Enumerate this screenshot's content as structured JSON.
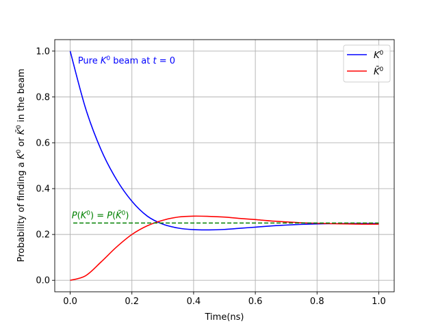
{
  "chart_data": {
    "type": "line",
    "title": "",
    "xlabel": "Time(ns)",
    "ylabel_parts": [
      "Probability of finding a ",
      "K",
      "0",
      " or ",
      "K̄",
      "0",
      " in the beam"
    ],
    "xlim": [
      -0.05,
      1.05
    ],
    "ylim": [
      -0.05,
      1.05
    ],
    "xticks": [
      0.0,
      0.2,
      0.4,
      0.6,
      0.8,
      1.0
    ],
    "xtick_labels": [
      "0.0",
      "0.2",
      "0.4",
      "0.6",
      "0.8",
      "1.0"
    ],
    "yticks": [
      0.0,
      0.2,
      0.4,
      0.6,
      0.8,
      1.0
    ],
    "ytick_labels": [
      "0.0",
      "0.2",
      "0.4",
      "0.6",
      "0.8",
      "1.0"
    ],
    "grid": true,
    "legend": {
      "position": "top-right",
      "entries": [
        {
          "base": "K",
          "sup": "0",
          "color": "#0000ff"
        },
        {
          "base": "K̄",
          "sup": "0",
          "color": "#ff0000"
        }
      ]
    },
    "series": [
      {
        "color": "#0000ff",
        "x": [
          0.0,
          0.05,
          0.1,
          0.15,
          0.2,
          0.25,
          0.3,
          0.35,
          0.4,
          0.45,
          0.5,
          0.55,
          0.6,
          0.65,
          0.7,
          0.75,
          0.8,
          0.85,
          0.9,
          0.95,
          1.0
        ],
        "y": [
          1.0,
          0.75,
          0.57,
          0.44,
          0.345,
          0.28,
          0.245,
          0.228,
          0.221,
          0.22,
          0.222,
          0.227,
          0.232,
          0.237,
          0.241,
          0.244,
          0.246,
          0.247,
          0.248,
          0.248,
          0.248
        ]
      },
      {
        "color": "#ff0000",
        "x": [
          0.0,
          0.05,
          0.1,
          0.15,
          0.2,
          0.25,
          0.3,
          0.35,
          0.4,
          0.45,
          0.5,
          0.55,
          0.6,
          0.65,
          0.7,
          0.75,
          0.8,
          0.85,
          0.9,
          0.95,
          1.0
        ],
        "y": [
          0.0,
          0.02,
          0.08,
          0.145,
          0.2,
          0.238,
          0.262,
          0.276,
          0.28,
          0.279,
          0.276,
          0.27,
          0.265,
          0.259,
          0.255,
          0.251,
          0.249,
          0.247,
          0.246,
          0.245,
          0.245
        ]
      }
    ],
    "reference_line": {
      "y": 0.25,
      "x_start": 0.01,
      "x_end": 1.0,
      "color": "#008000",
      "style": "dashed"
    },
    "annotations": [
      {
        "id": "pure-beam",
        "parts": [
          "Pure ",
          "K",
          "0",
          " beam at ",
          "t",
          " = 0"
        ],
        "x": 0.025,
        "y": 0.945,
        "color": "#0000ff"
      },
      {
        "id": "equal-prob",
        "parts": [
          "P",
          "(",
          "K",
          "0",
          ") = ",
          "P",
          "(",
          "K̄",
          "0",
          ")"
        ],
        "x": 0.005,
        "y": 0.27,
        "color": "#008000"
      }
    ]
  }
}
